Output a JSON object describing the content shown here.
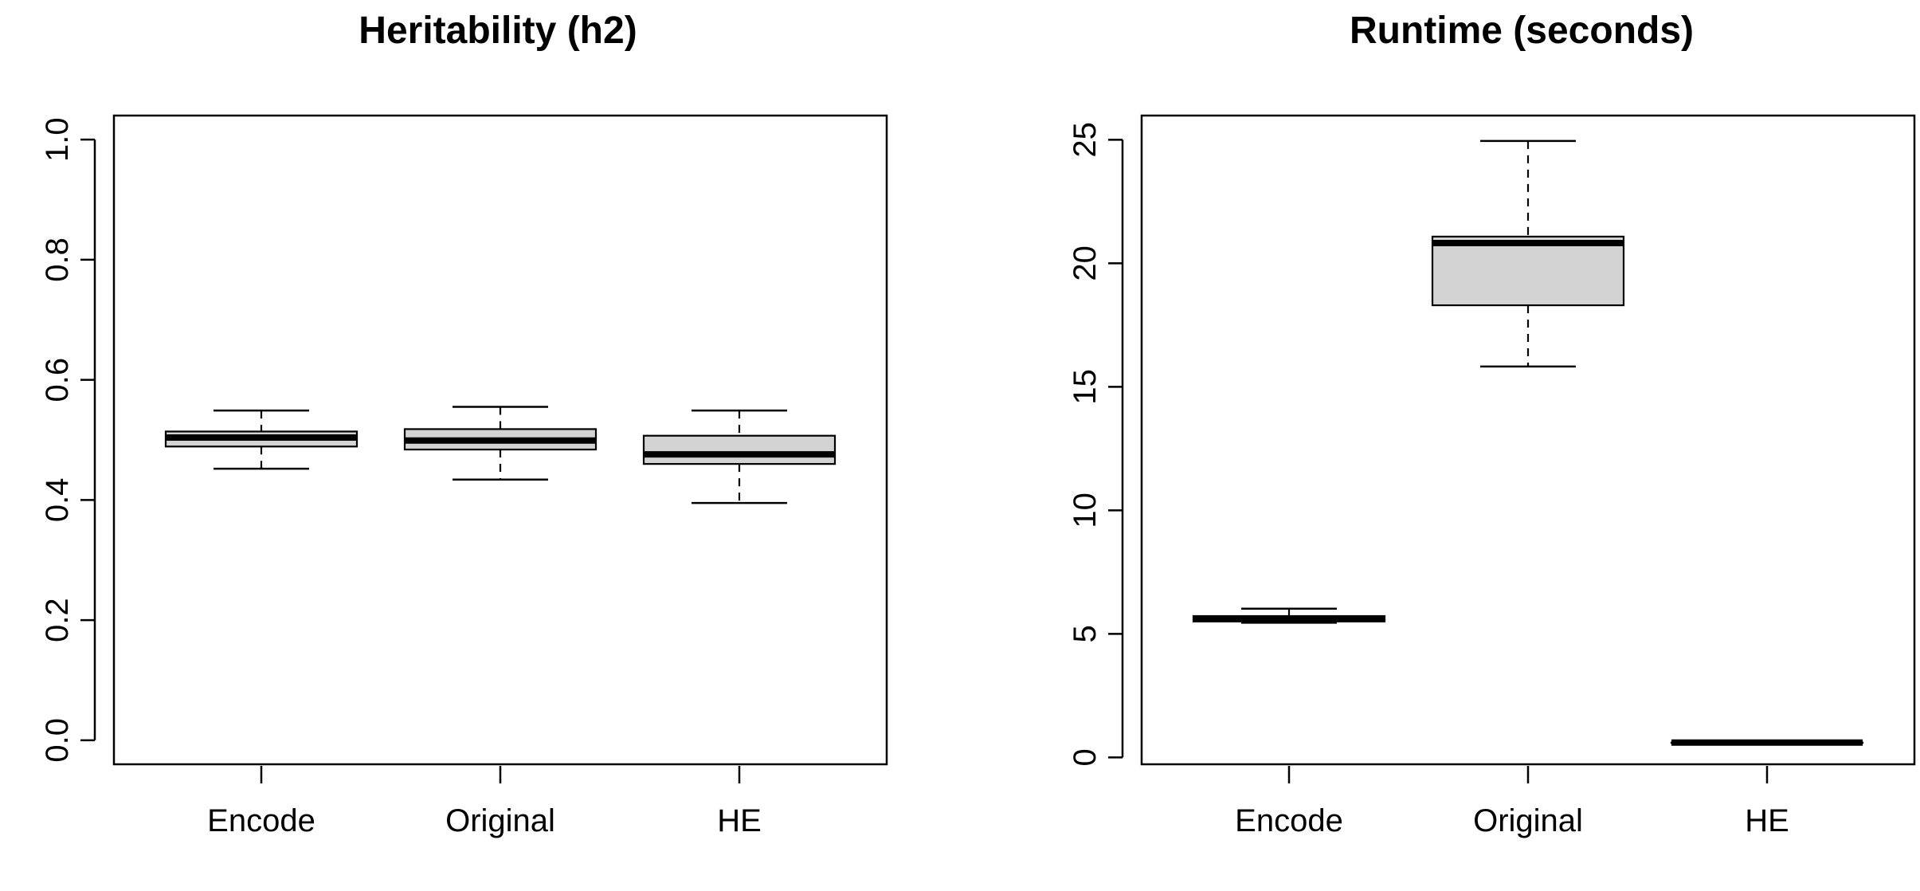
{
  "chart_data": [
    {
      "type": "boxplot",
      "title": "Heritability (h2)",
      "xlabel": "",
      "ylabel": "",
      "categories": [
        "Encode",
        "Original",
        "HE"
      ],
      "ylim": [
        -0.04,
        1.04
      ],
      "yticks": [
        0.0,
        0.2,
        0.4,
        0.6,
        0.8,
        1.0
      ],
      "ytick_labels": [
        "0.0",
        "0.2",
        "0.4",
        "0.6",
        "0.8",
        "1.0"
      ],
      "boxes": [
        {
          "category": "Encode",
          "min": 0.452,
          "q1": 0.489,
          "median": 0.504,
          "q3": 0.514,
          "max": 0.549
        },
        {
          "category": "Original",
          "min": 0.434,
          "q1": 0.484,
          "median": 0.499,
          "q3": 0.518,
          "max": 0.555
        },
        {
          "category": "HE",
          "min": 0.395,
          "q1": 0.46,
          "median": 0.476,
          "q3": 0.507,
          "max": 0.549
        }
      ],
      "box_fill": "#d3d3d3",
      "grid": false
    },
    {
      "type": "boxplot",
      "title": "Runtime (seconds)",
      "xlabel": "",
      "ylabel": "",
      "categories": [
        "Encode",
        "Original",
        "HE"
      ],
      "ylim": [
        -0.28,
        25.98
      ],
      "yticks": [
        0,
        5,
        10,
        15,
        20,
        25
      ],
      "ytick_labels": [
        "0",
        "5",
        "10",
        "15",
        "20",
        "25"
      ],
      "boxes": [
        {
          "category": "Encode",
          "min": 5.45,
          "q1": 5.5,
          "median": 5.62,
          "q3": 5.72,
          "max": 6.02
        },
        {
          "category": "Original",
          "min": 15.82,
          "q1": 18.3,
          "median": 20.82,
          "q3": 21.08,
          "max": 24.95
        },
        {
          "category": "HE",
          "min": 0.6,
          "q1": 0.6,
          "median": 0.6,
          "q3": 0.6,
          "max": 0.6
        }
      ],
      "box_fill": "#d3d3d3",
      "grid": false
    }
  ]
}
